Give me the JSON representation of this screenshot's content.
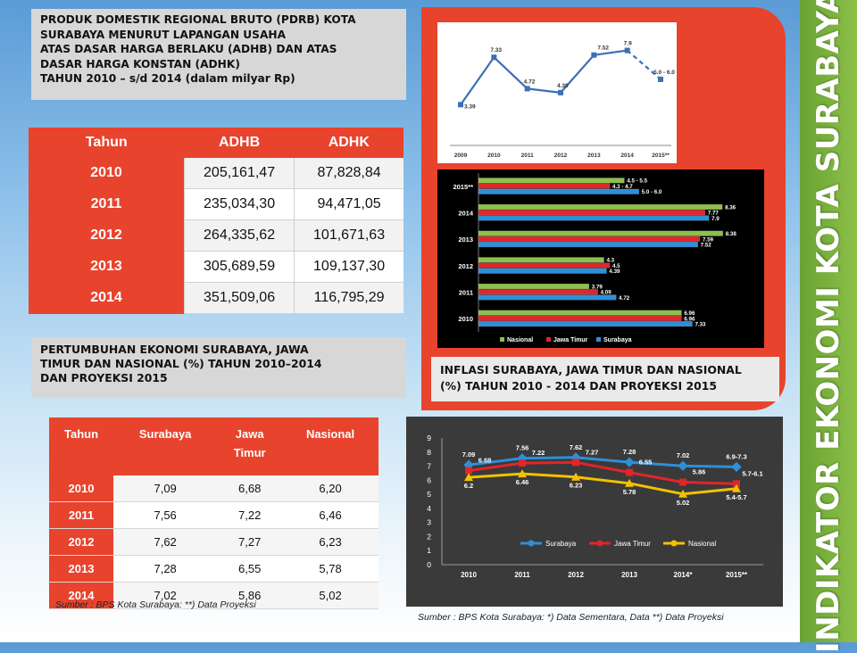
{
  "pdrb": {
    "title_lines": [
      "PRODUK DOMESTIK REGIONAL BRUTO (PDRB) KOTA",
      "SURABAYA MENURUT LAPANGAN USAHA",
      "ATAS DASAR HARGA BERLAKU (ADHB) DAN ATAS",
      "DASAR HARGA KONSTAN (ADHK)",
      "TAHUN 2010 – s/d 2014 (dalam milyar Rp)"
    ],
    "headers": [
      "Tahun",
      "ADHB",
      "ADHK"
    ],
    "rows": [
      {
        "year": "2010",
        "adhb": "205,161,47",
        "adhk": "87,828,84"
      },
      {
        "year": "2011",
        "adhb": "235,034,30",
        "adhk": "94,471,05"
      },
      {
        "year": "2012",
        "adhb": "264,335,62",
        "adhk": "101,671,63"
      },
      {
        "year": "2013",
        "adhb": "305,689,59",
        "adhk": "109,137,30"
      },
      {
        "year": "2014",
        "adhb": "351,509,06",
        "adhk": "116,795,29"
      }
    ]
  },
  "growth": {
    "title_lines": [
      "PERTUMBUHAN EKONOMI SURABAYA, JAWA",
      "TIMUR DAN NASIONAL  (%) TAHUN 2010–2014",
      "DAN PROYEKSI 2015"
    ],
    "headers": [
      "Tahun",
      "Surabaya",
      "Jawa Timur",
      "Nasional"
    ],
    "header_jatim_lines": [
      "Jawa",
      "Timur"
    ],
    "rows": [
      {
        "year": "2010",
        "surabaya": "7,09",
        "jatim": "6,68",
        "nasional": "6,20"
      },
      {
        "year": "2011",
        "surabaya": "7,56",
        "jatim": "7,22",
        "nasional": "6,46"
      },
      {
        "year": "2012",
        "surabaya": "7,62",
        "jatim": "7,27",
        "nasional": "6,23"
      },
      {
        "year": "2013",
        "surabaya": "7,28",
        "jatim": "6,55",
        "nasional": "5,78"
      },
      {
        "year": "2014",
        "surabaya": "7,02",
        "jatim": "5,86",
        "nasional": "5,02"
      }
    ],
    "source": "Sumber : BPS Kota Surabaya:  **) Data Proyeksi"
  },
  "inflasi": {
    "title_lines": [
      "INFLASI  SURABAYA, JAWA TIMUR DAN NASIONAL",
      "(%) TAHUN 2010 - 2014 DAN PROYEKSI 2015"
    ]
  },
  "bottom_source": "Sumber : BPS Kota Surabaya:  *) Data Sementara, Data **) Data Proyeksi",
  "side_title": "INDIKATOR EKONOMI KOTA  SURABAYA",
  "colors": {
    "accent_red": "#e8432d",
    "green": "#8cc149",
    "surabaya": "#2e8fd9",
    "jatim": "#e0262b",
    "nasional": "#f2c200",
    "line_blue": "#3c6fb4"
  },
  "chart_data": [
    {
      "type": "line",
      "x": [
        "2009",
        "2010",
        "2011",
        "2012",
        "2013",
        "2014",
        "2015**"
      ],
      "values": [
        3.39,
        7.33,
        4.72,
        4.39,
        7.52,
        7.9,
        5.5
      ],
      "data_labels": [
        "3.39",
        "7.33",
        "4.72",
        "4.39",
        "7.52",
        "7.9",
        "5.0 - 6.0"
      ],
      "projection_from_index": 5,
      "ylim": [
        0,
        9.5
      ],
      "title": "",
      "xlabel": "",
      "ylabel": "",
      "grid": false
    },
    {
      "type": "bar",
      "orientation": "horizontal",
      "categories": [
        "2015**",
        "2014",
        "2013",
        "2012",
        "2011",
        "2010"
      ],
      "series": [
        {
          "name": "Nasional",
          "values": [
            5.0,
            8.36,
            8.38,
            4.3,
            3.79,
            6.96
          ],
          "labels": [
            "4.5 - 5.5",
            "8.36",
            "8.38",
            "4.3",
            "3.79",
            "6.96"
          ]
        },
        {
          "name": "Jawa Timur",
          "values": [
            4.5,
            7.77,
            7.59,
            4.5,
            4.09,
            6.96
          ],
          "labels": [
            "4.3 - 4.7",
            "7.77",
            "7.59",
            "4.5",
            "4.09",
            "6.96"
          ]
        },
        {
          "name": "Surabaya",
          "values": [
            5.5,
            7.9,
            7.52,
            4.39,
            4.72,
            7.33
          ],
          "labels": [
            "5.0 - 6.0",
            "7.9",
            "7.52",
            "4.39",
            "4.72",
            "7.33"
          ]
        }
      ],
      "xlim": [
        0,
        9
      ],
      "legend": "bottom",
      "title": "",
      "xlabel": "",
      "ylabel": ""
    },
    {
      "type": "line",
      "categories": [
        "2010",
        "2011",
        "2012",
        "2013",
        "2014*",
        "2015**"
      ],
      "series": [
        {
          "name": "Surabaya",
          "values": [
            7.09,
            7.56,
            7.62,
            7.28,
            7.02,
            6.95
          ],
          "labels": [
            "7.09",
            "7.56",
            "7.62",
            "7.28",
            "7.02",
            "6.9-7.3"
          ]
        },
        {
          "name": "Jawa Timur",
          "values": [
            6.68,
            7.22,
            7.27,
            6.55,
            5.86,
            5.75
          ],
          "labels": [
            "6.68",
            "7.22",
            "7.27",
            "6.55",
            "5.86",
            "5.7-6.1"
          ]
        },
        {
          "name": "Nasional",
          "values": [
            6.2,
            6.46,
            6.23,
            5.78,
            5.02,
            5.4
          ],
          "labels": [
            "6.2",
            "6.46",
            "6.23",
            "5.78",
            "5.02",
            "5.4-5.7"
          ]
        }
      ],
      "yticks": [
        "0",
        "1",
        "2",
        "3",
        "4",
        "5",
        "6",
        "7",
        "8",
        "9"
      ],
      "ylim": [
        0,
        9
      ],
      "legend": "bottom",
      "title": "",
      "xlabel": "",
      "ylabel": "",
      "grid": false
    }
  ]
}
